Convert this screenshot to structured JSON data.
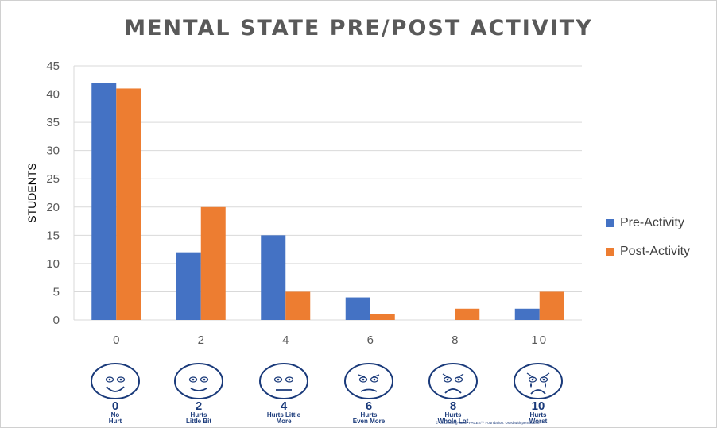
{
  "chart_data": {
    "type": "bar",
    "title": "MENTAL STATE PRE/POST ACTIVITY",
    "xlabel": "",
    "ylabel": "STUDENTS",
    "categories": [
      "0",
      "2",
      "4",
      "6",
      "8",
      "10"
    ],
    "yticks": [
      "0",
      "5",
      "10",
      "15",
      "20",
      "25",
      "30",
      "35",
      "40",
      "45"
    ],
    "ylim": [
      0,
      45
    ],
    "grid": true,
    "legend_position": "right",
    "series": [
      {
        "name": "Pre-Activity",
        "color": "#4472C4",
        "values": [
          42,
          12,
          15,
          4,
          0,
          2
        ]
      },
      {
        "name": "Post-Activity",
        "color": "#ED7D31",
        "values": [
          41,
          20,
          5,
          1,
          2,
          5
        ]
      }
    ]
  },
  "face_scale": {
    "color": "#1a3a7a",
    "faces": [
      {
        "number": "0",
        "line1": "No",
        "line2": "Hurt",
        "icon": "smiling-face-icon"
      },
      {
        "number": "2",
        "line1": "Hurts",
        "line2": "Little Bit",
        "icon": "slight-smile-face-icon"
      },
      {
        "number": "4",
        "line1": "Hurts Little",
        "line2": "More",
        "icon": "neutral-face-icon"
      },
      {
        "number": "6",
        "line1": "Hurts",
        "line2": "Even More",
        "icon": "frown-face-icon"
      },
      {
        "number": "8",
        "line1": "Hurts",
        "line2": "Whole Lot",
        "icon": "sad-face-icon"
      },
      {
        "number": "10",
        "line1": "Hurts",
        "line2": "Worst",
        "icon": "crying-face-icon"
      }
    ],
    "copyright": "© 1983 Wong-Baker FACES™ Foundation. Used with permission."
  }
}
